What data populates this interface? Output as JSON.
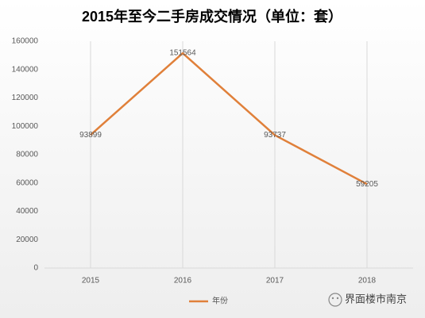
{
  "chart_data": {
    "type": "line",
    "title": "2015年至今二手房成交情况（单位：套）",
    "categories": [
      "2015",
      "2016",
      "2017",
      "2018"
    ],
    "series": [
      {
        "name": "年份",
        "color": "#e0803a",
        "values": [
          93899,
          151564,
          93737,
          59205
        ]
      }
    ],
    "ylim": [
      0,
      160000
    ],
    "yticks": [
      0,
      20000,
      40000,
      60000,
      80000,
      100000,
      120000,
      140000,
      160000
    ],
    "grid": true,
    "legend": "bottom",
    "watermark": "界面楼市南京"
  }
}
